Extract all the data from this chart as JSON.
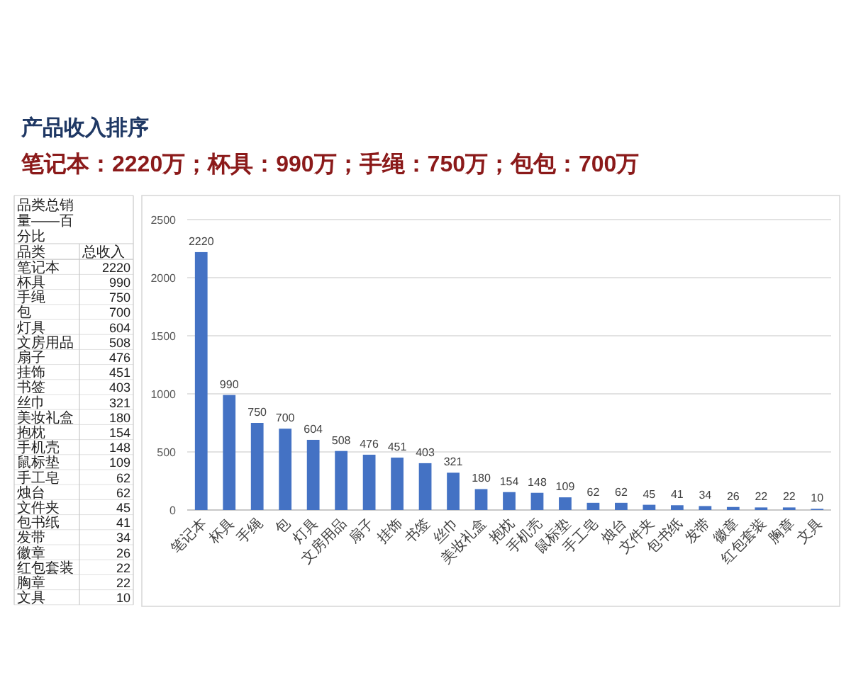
{
  "chart_data": [
    {
      "type": "other",
      "annotations": [
        "品类总销量——百分比",
        "品类",
        "总收入"
      ],
      "categories": [
        "笔记本",
        "杯具",
        "手绳",
        "包",
        "灯具",
        "文房用品",
        "扇子",
        "挂饰",
        "书签",
        "丝巾",
        "美妆礼盒",
        "抱枕",
        "手机壳",
        "鼠标垫",
        "手工皂",
        "烛台",
        "文件夹",
        "包书纸",
        "发带",
        "徽章",
        "红包套装",
        "胸章",
        "文具"
      ],
      "values": [
        2220,
        990,
        750,
        700,
        604,
        508,
        476,
        451,
        403,
        321,
        180,
        154,
        148,
        109,
        62,
        62,
        45,
        41,
        34,
        26,
        22,
        22,
        10
      ],
      "data_labels": true
    },
    {
      "type": "bar",
      "title": "产品收入排序",
      "subtitle": "笔记本：2220万；杯具：990万；手绳：750万；包包：700万",
      "categories": [
        "笔记本",
        "杯具",
        "手绳",
        "包",
        "灯具",
        "文房用品",
        "扇子",
        "挂饰",
        "书签",
        "丝巾",
        "美妆礼盒",
        "抱枕",
        "手机壳",
        "鼠标垫",
        "手工皂",
        "烛台",
        "文件夹",
        "包书纸",
        "发带",
        "徽章",
        "红包套装",
        "胸章",
        "文具"
      ],
      "values": [
        2220,
        990,
        750,
        700,
        604,
        508,
        476,
        451,
        403,
        321,
        180,
        154,
        148,
        109,
        62,
        62,
        45,
        41,
        34,
        26,
        22,
        22,
        10
      ],
      "color": "#4472c4",
      "ylim": [
        0,
        2500
      ],
      "yticks": [
        0,
        500,
        1000,
        1500,
        2000,
        2500
      ],
      "grid": "y",
      "data_labels": true
    }
  ]
}
